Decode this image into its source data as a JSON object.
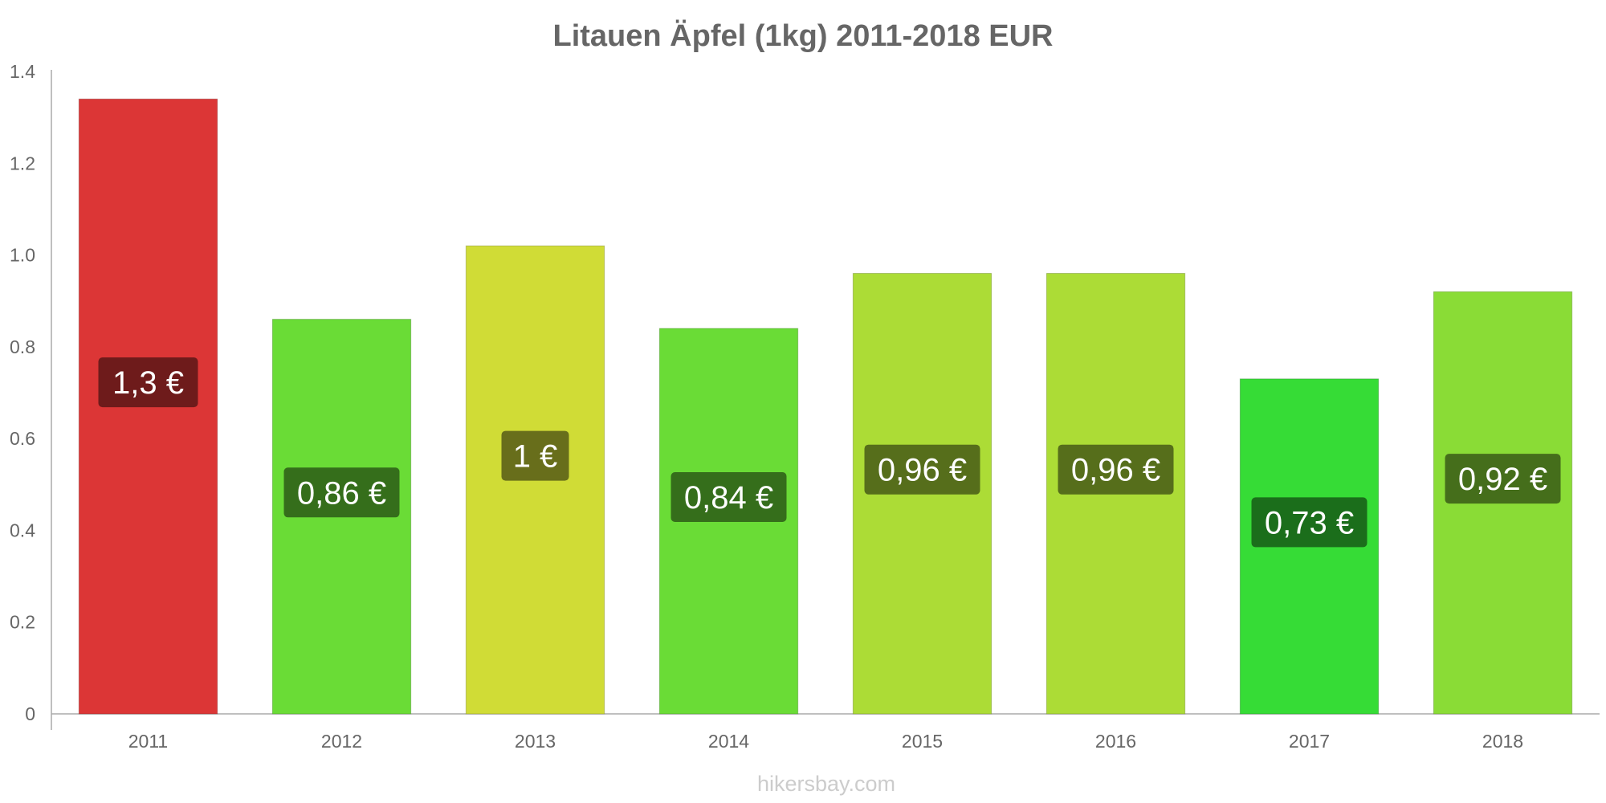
{
  "chart_data": {
    "type": "bar",
    "title": "Litauen Äpfel (1kg) 2011-2018 EUR",
    "categories": [
      "2011",
      "2012",
      "2013",
      "2014",
      "2015",
      "2016",
      "2017",
      "2018"
    ],
    "values": [
      1.34,
      0.86,
      1.02,
      0.84,
      0.96,
      0.96,
      0.73,
      0.92
    ],
    "data_labels": [
      "1,3 €",
      "0,86 €",
      "1 €",
      "0,84 €",
      "0,96 €",
      "0,96 €",
      "0,73 €",
      "0,92 €"
    ],
    "bar_colors": [
      "#dc3636",
      "#6adc36",
      "#d0dc36",
      "#6adc36",
      "#acdc36",
      "#acdc36",
      "#36dc36",
      "#8adc36"
    ],
    "label_colors": [
      "#6e1b1b",
      "#356e1b",
      "#686e1b",
      "#356e1b",
      "#566e1b",
      "#566e1b",
      "#1b6e1b",
      "#456e1b"
    ],
    "y_ticks": [
      0,
      0.2,
      0.4,
      0.6,
      0.8,
      1.0,
      1.2,
      1.4
    ],
    "y_tick_labels": [
      "0",
      "0.2",
      "0.4",
      "0.6",
      "0.8",
      "1.0",
      "1.2",
      "1.4"
    ],
    "ylim": [
      0,
      1.4
    ],
    "xlabel": "",
    "ylabel": "",
    "grid": false,
    "legend": "none"
  },
  "watermark": "hikersbay.com",
  "colors": {
    "title": "#666666",
    "axis": "#aaaaaa",
    "tick_text": "#666666",
    "watermark": "#cccccc"
  }
}
